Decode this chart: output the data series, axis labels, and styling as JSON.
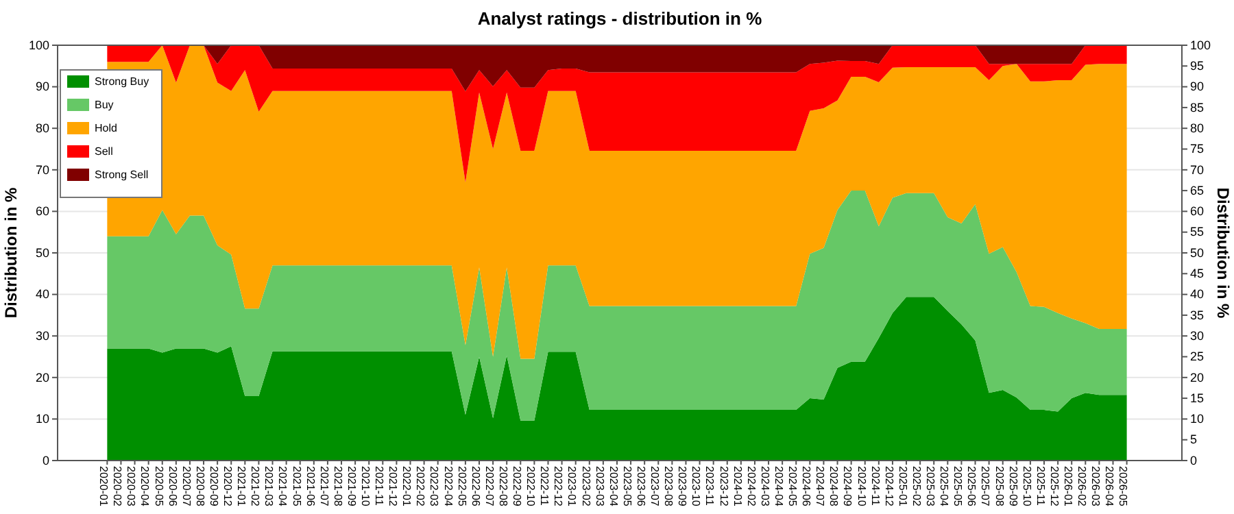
{
  "chart_data": {
    "type": "area",
    "title": "Analyst ratings - distribution in %",
    "ylabel": "Distribution in %",
    "y2label": "Distribution in %",
    "categories": [
      "2020-01",
      "2020-02",
      "2020-03",
      "2020-04",
      "2020-05",
      "2020-06",
      "2020-07",
      "2020-08",
      "2020-09",
      "2020-12",
      "2021-01",
      "2021-02",
      "2021-03",
      "2021-04",
      "2021-05",
      "2021-06",
      "2021-07",
      "2021-08",
      "2021-09",
      "2021-10",
      "2021-11",
      "2021-12",
      "2022-01",
      "2022-02",
      "2022-03",
      "2022-04",
      "2022-05",
      "2022-06",
      "2022-07",
      "2022-08",
      "2022-09",
      "2022-10",
      "2022-11",
      "2022-12",
      "2023-01",
      "2023-02",
      "2023-03",
      "2023-04",
      "2023-05",
      "2023-06",
      "2023-07",
      "2023-08",
      "2023-09",
      "2023-10",
      "2023-11",
      "2023-12",
      "2024-01",
      "2024-02",
      "2024-03",
      "2024-04",
      "2024-05",
      "2024-06",
      "2024-07",
      "2024-08",
      "2024-09",
      "2024-10",
      "2024-11",
      "2024-12",
      "2025-01",
      "2025-02",
      "2025-03",
      "2025-04",
      "2025-05",
      "2025-06",
      "2025-07",
      "2025-08",
      "2025-09",
      "2025-10",
      "2025-11",
      "2025-12",
      "2026-01",
      "2026-02",
      "2026-03",
      "2026-04",
      "2026-05"
    ],
    "stacked": true,
    "series": [
      {
        "name": "Strong Buy",
        "color": "#008f00",
        "values": [
          27,
          27,
          27,
          27,
          26,
          27,
          27,
          27,
          26,
          27.5,
          15.5,
          15.5,
          26.3,
          26.3,
          26.3,
          26.3,
          26.3,
          26.3,
          26.3,
          26.3,
          26.3,
          26.3,
          26.3,
          26.3,
          26.3,
          26.3,
          11,
          25,
          10.2,
          25.3,
          9.6,
          9.6,
          26.2,
          26.2,
          26.2,
          12.2,
          12.2,
          12.2,
          12.2,
          12.2,
          12.2,
          12.2,
          12.2,
          12.2,
          12.2,
          12.2,
          12.2,
          12.2,
          12.2,
          12.2,
          12.2,
          15,
          14.7,
          22.3,
          23.8,
          23.8,
          29.5,
          35.5,
          39.4,
          39.4,
          39.4,
          36,
          32.8,
          28.9,
          16.3,
          17,
          15.2,
          12.2,
          12.2,
          11.8,
          15,
          16.3,
          15.8,
          15.8,
          15.8
        ]
      },
      {
        "name": "Buy",
        "color": "#66c866",
        "values": [
          27,
          27,
          27,
          27,
          34.3,
          27.5,
          32,
          32,
          25.8,
          22.1,
          21.1,
          21.1,
          20.7,
          20.7,
          20.7,
          20.7,
          20.7,
          20.7,
          20.7,
          20.7,
          20.7,
          20.7,
          20.7,
          20.7,
          20.7,
          20.7,
          16.8,
          21.5,
          14.8,
          21.2,
          14.9,
          14.9,
          20.8,
          20.8,
          20.8,
          25,
          25,
          25,
          25,
          25,
          25,
          25,
          25,
          25,
          25,
          25,
          25,
          25,
          25,
          25,
          25,
          34.8,
          36.5,
          38,
          41.2,
          41.2,
          26.9,
          27.8,
          25,
          25,
          25,
          22.6,
          24.3,
          32.8,
          33.5,
          34.4,
          30.2,
          25,
          24.8,
          23.7,
          19.2,
          16.8,
          15.9,
          15.9,
          15.9
        ]
      },
      {
        "name": "Hold",
        "color": "#ffa500",
        "values": [
          42,
          42,
          42,
          42,
          39.7,
          36.5,
          41,
          41,
          39.2,
          39.4,
          57.4,
          47.4,
          42,
          42,
          42,
          42,
          42,
          42,
          42,
          42,
          42,
          42,
          42,
          42,
          42,
          42,
          39.2,
          42.1,
          50,
          42.1,
          50.1,
          50.1,
          42,
          42,
          42,
          37.4,
          37.4,
          37.4,
          37.4,
          37.4,
          37.4,
          37.4,
          37.4,
          37.4,
          37.4,
          37.4,
          37.4,
          37.4,
          37.4,
          37.4,
          37.4,
          34.4,
          33.6,
          26.4,
          27.4,
          27.4,
          34.7,
          31.3,
          30.3,
          30.3,
          30.3,
          36.1,
          37.6,
          33,
          41.8,
          43.6,
          50.1,
          54.1,
          54.3,
          56.1,
          57.4,
          62.2,
          63.8,
          63.8,
          63.8
        ]
      },
      {
        "name": "Sell",
        "color": "#ff0000",
        "values": [
          4,
          4,
          4,
          4,
          0,
          9,
          0,
          0,
          4.5,
          11,
          6,
          16,
          5.4,
          5.4,
          5.4,
          5.4,
          5.4,
          5.4,
          5.4,
          5.4,
          5.4,
          5.4,
          5.4,
          5.4,
          5.4,
          5.4,
          21.9,
          5.4,
          15.1,
          5.4,
          15.2,
          15.2,
          5,
          5.4,
          5.4,
          18.9,
          18.9,
          18.9,
          18.9,
          18.9,
          18.9,
          18.9,
          18.9,
          18.9,
          18.9,
          18.9,
          18.9,
          18.9,
          18.9,
          18.9,
          18.9,
          11.3,
          11,
          9.6,
          3.8,
          3.8,
          4.4,
          5.4,
          5.3,
          5.3,
          5.3,
          5.3,
          5.3,
          5.3,
          3.9,
          0.5,
          0,
          4.2,
          4.2,
          3.9,
          3.9,
          4.7,
          4.5,
          4.5,
          4.5
        ]
      },
      {
        "name": "Strong Sell",
        "color": "#800000",
        "values": [
          0,
          0,
          0,
          0,
          0,
          0,
          0,
          0,
          4.5,
          0,
          0,
          0,
          5.6,
          5.6,
          5.6,
          5.6,
          5.6,
          5.6,
          5.6,
          5.6,
          5.6,
          5.6,
          5.6,
          5.6,
          5.6,
          5.6,
          11.1,
          6,
          9.9,
          6,
          10.2,
          10.2,
          6,
          5.6,
          5.6,
          6.5,
          6.5,
          6.5,
          6.5,
          6.5,
          6.5,
          6.5,
          6.5,
          6.5,
          6.5,
          6.5,
          6.5,
          6.5,
          6.5,
          6.5,
          6.5,
          4.5,
          4.2,
          3.7,
          3.8,
          3.8,
          4.5,
          0,
          0,
          0,
          0,
          0,
          0,
          0,
          4.5,
          4.5,
          4.5,
          4.5,
          4.5,
          4.5,
          4.5,
          0,
          0,
          0,
          0
        ]
      }
    ],
    "ylim": [
      0,
      100
    ],
    "yticks": [
      0,
      10,
      20,
      30,
      40,
      50,
      60,
      70,
      80,
      90,
      100
    ],
    "y2lim": [
      0,
      100
    ],
    "y2ticks": [
      0,
      5,
      10,
      15,
      20,
      25,
      30,
      35,
      40,
      45,
      50,
      55,
      60,
      65,
      70,
      75,
      80,
      85,
      90,
      95,
      100
    ],
    "grid": "y",
    "legend": "top left"
  }
}
